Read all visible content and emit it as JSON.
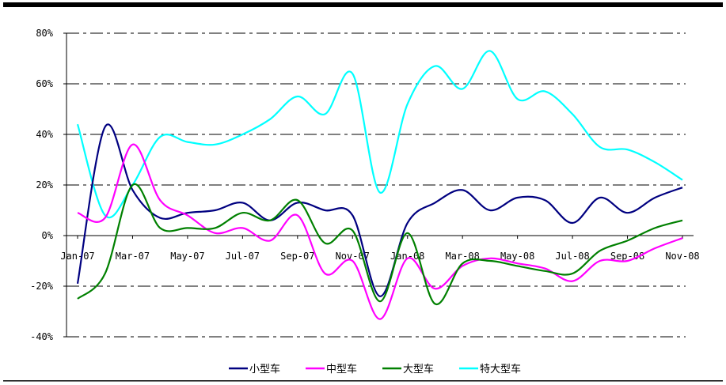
{
  "chart_data": {
    "type": "line",
    "title": "",
    "xlabel": "",
    "ylabel": "",
    "ylim": [
      -40,
      80
    ],
    "yticks": [
      -40,
      -20,
      0,
      20,
      40,
      60,
      80
    ],
    "ytick_labels": [
      "-40%",
      "-20%",
      "0%",
      "20%",
      "40%",
      "60%",
      "80%"
    ],
    "grid": "dashed horizontal",
    "legend_position": "bottom",
    "x": [
      "Jan-07",
      "Feb-07",
      "Mar-07",
      "Apr-07",
      "May-07",
      "Jun-07",
      "Jul-07",
      "Aug-07",
      "Sep-07",
      "Oct-07",
      "Nov-07",
      "Dec-07",
      "Jan-08",
      "Feb-08",
      "Mar-08",
      "Apr-08",
      "May-08",
      "Jun-08",
      "Jul-08",
      "Aug-08",
      "Sep-08",
      "Oct-08",
      "Nov-08"
    ],
    "xtick_labels": [
      "Jan-07",
      "Mar-07",
      "May-07",
      "Jul-07",
      "Sep-07",
      "Nov-07",
      "Jan-08",
      "Mar-08",
      "May-08",
      "Jul-08",
      "Sep-08",
      "Nov-08"
    ],
    "xtick_index": [
      0,
      2,
      4,
      6,
      8,
      10,
      12,
      14,
      16,
      18,
      20,
      22
    ],
    "series": [
      {
        "name": "小型车",
        "color": "#000080",
        "values": [
          -19,
          43,
          18,
          7,
          9,
          10,
          13,
          6,
          13,
          10,
          8,
          -24,
          5,
          13,
          18,
          10,
          15,
          14,
          5,
          15,
          9,
          15,
          19
        ]
      },
      {
        "name": "中型车",
        "color": "#FF00FF",
        "values": [
          9,
          7,
          36,
          14,
          8,
          1,
          3,
          -2,
          8,
          -15,
          -10,
          -33,
          -9,
          -21,
          -12,
          -9,
          -11,
          -13,
          -18,
          -10,
          -10,
          -5,
          -1
        ]
      },
      {
        "name": "大型车",
        "color": "#008000",
        "values": [
          -25,
          -15,
          20,
          3,
          3,
          3,
          9,
          6,
          14,
          -3,
          2,
          -26,
          1,
          -27,
          -11,
          -10,
          -12,
          -14,
          -15,
          -6,
          -2,
          3,
          6
        ]
      },
      {
        "name": "特大型车",
        "color": "#00FFFF",
        "values": [
          44,
          8,
          20,
          39,
          37,
          36,
          40,
          46,
          55,
          48,
          64,
          17,
          52,
          67,
          58,
          73,
          54,
          57,
          48,
          35,
          34,
          29,
          22
        ]
      }
    ]
  }
}
